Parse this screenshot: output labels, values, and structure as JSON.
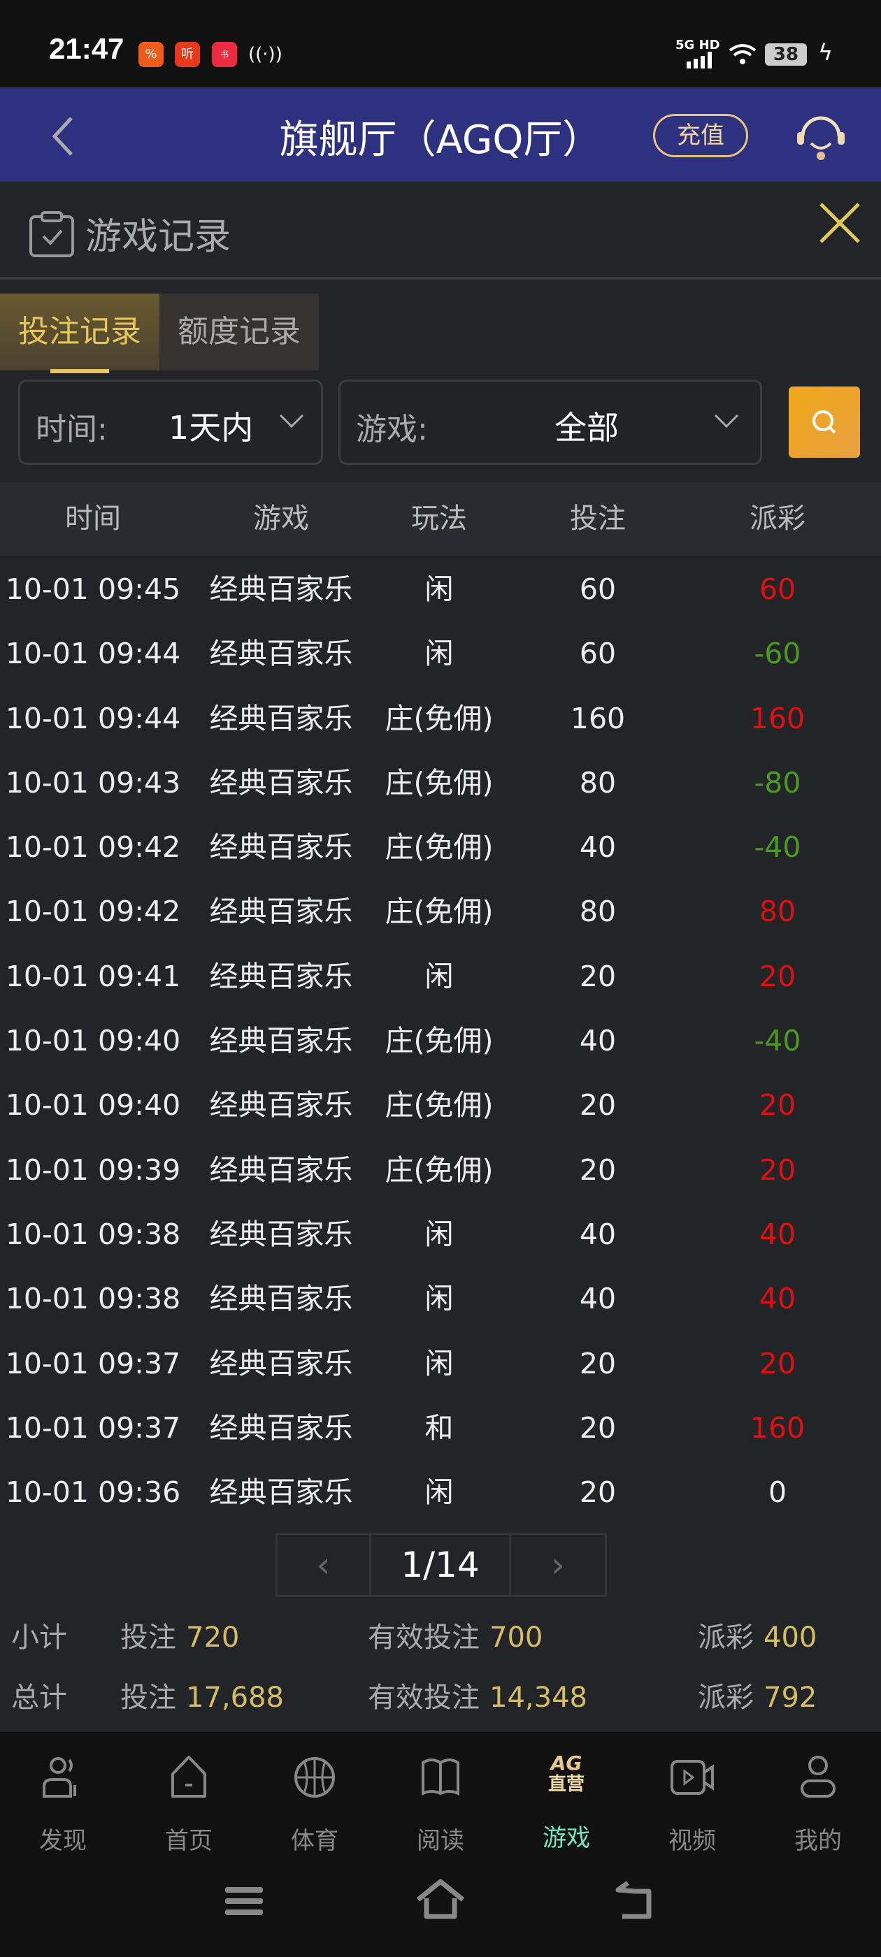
{
  "status": {
    "time": "21:47",
    "network": "5G HD",
    "battery": "38"
  },
  "header": {
    "title": "旗舰厅（AGQ厅）",
    "recharge": "充值"
  },
  "panel": {
    "title": "游戏记录"
  },
  "tabs": [
    {
      "label": "投注记录",
      "active": true
    },
    {
      "label": "额度记录",
      "active": false
    }
  ],
  "filters": {
    "time_label": "时间:",
    "time_value": "1天内",
    "game_label": "游戏:",
    "game_value": "全部"
  },
  "table": {
    "columns": [
      "时间",
      "游戏",
      "玩法",
      "投注",
      "派彩"
    ],
    "rows": [
      [
        "10-01 09:45",
        "经典百家乐",
        "闲",
        "60",
        "60"
      ],
      [
        "10-01 09:44",
        "经典百家乐",
        "闲",
        "60",
        "-60"
      ],
      [
        "10-01 09:44",
        "经典百家乐",
        "庄(免佣)",
        "160",
        "160"
      ],
      [
        "10-01 09:43",
        "经典百家乐",
        "庄(免佣)",
        "80",
        "-80"
      ],
      [
        "10-01 09:42",
        "经典百家乐",
        "庄(免佣)",
        "40",
        "-40"
      ],
      [
        "10-01 09:42",
        "经典百家乐",
        "庄(免佣)",
        "80",
        "80"
      ],
      [
        "10-01 09:41",
        "经典百家乐",
        "闲",
        "20",
        "20"
      ],
      [
        "10-01 09:40",
        "经典百家乐",
        "庄(免佣)",
        "40",
        "-40"
      ],
      [
        "10-01 09:40",
        "经典百家乐",
        "庄(免佣)",
        "20",
        "20"
      ],
      [
        "10-01 09:39",
        "经典百家乐",
        "庄(免佣)",
        "20",
        "20"
      ],
      [
        "10-01 09:38",
        "经典百家乐",
        "闲",
        "40",
        "40"
      ],
      [
        "10-01 09:38",
        "经典百家乐",
        "闲",
        "40",
        "40"
      ],
      [
        "10-01 09:37",
        "经典百家乐",
        "闲",
        "20",
        "20"
      ],
      [
        "10-01 09:37",
        "经典百家乐",
        "和",
        "20",
        "160"
      ],
      [
        "10-01 09:36",
        "经典百家乐",
        "闲",
        "20",
        "0"
      ]
    ]
  },
  "pagination": {
    "prev": "‹",
    "page": "1/14",
    "next": "›"
  },
  "subtotal": {
    "label": "小计",
    "bet_label": "投注",
    "bet": "720",
    "valid_label": "有效投注",
    "valid": "700",
    "payout_label": "派彩",
    "payout": "400"
  },
  "total": {
    "label": "总计",
    "bet_label": "投注",
    "bet": "17,688",
    "valid_label": "有效投注",
    "valid": "14,348",
    "payout_label": "派彩",
    "payout": "792"
  },
  "nav": [
    {
      "label": "发现",
      "icon": "people-icon"
    },
    {
      "label": "首页",
      "icon": "home-icon"
    },
    {
      "label": "体育",
      "icon": "basketball-icon"
    },
    {
      "label": "阅读",
      "icon": "book-icon"
    },
    {
      "label": "游戏",
      "icon": "ag-direct-icon",
      "active": true,
      "badge_top": "AG",
      "badge_bottom": "直营"
    },
    {
      "label": "视频",
      "icon": "video-icon"
    },
    {
      "label": "我的",
      "icon": "user-icon"
    }
  ],
  "colors": {
    "header_bg": "#2e3080",
    "gold": "#d4bd62",
    "win": "#e01010",
    "loss": "#4a9a20",
    "active_nav": "#6ee8c0"
  }
}
